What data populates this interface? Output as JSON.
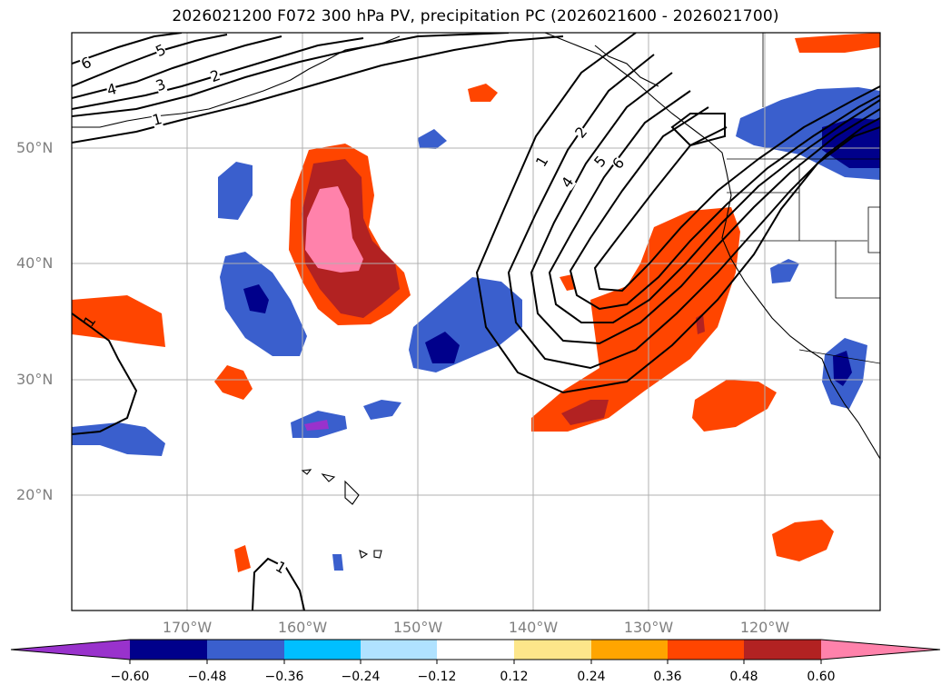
{
  "title": "2026021200 F072 300 hPa PV, precipitation PC (2026021600 - 2026021700)",
  "lat_labels": [
    "50°N",
    "40°N",
    "30°N",
    "20°N"
  ],
  "lon_labels": [
    "170°W",
    "160°W",
    "150°W",
    "140°W",
    "130°W",
    "120°W"
  ],
  "colorbar": {
    "tick_labels": [
      "−0.60",
      "−0.48",
      "−0.36",
      "−0.24",
      "−0.12",
      "0.12",
      "0.24",
      "0.36",
      "0.48",
      "0.60"
    ],
    "colors": [
      "#9932cc",
      "#00008b",
      "#3a5fcd",
      "#00bfff",
      "#b0e2ff",
      "#ffffff",
      "#fde68a",
      "#ffa500",
      "#ff4500",
      "#b22222",
      "#ff82ab"
    ]
  },
  "contour_labels": {
    "nw_6": "6",
    "nw_5": "5",
    "nw_4": "4",
    "nw_3": "3",
    "nw_2": "2",
    "nw_1": "1",
    "c_1": "1",
    "c_2": "2",
    "c_4": "4",
    "c_5": "5",
    "c_6": "6",
    "w_1": "1",
    "s_1": "1"
  }
}
